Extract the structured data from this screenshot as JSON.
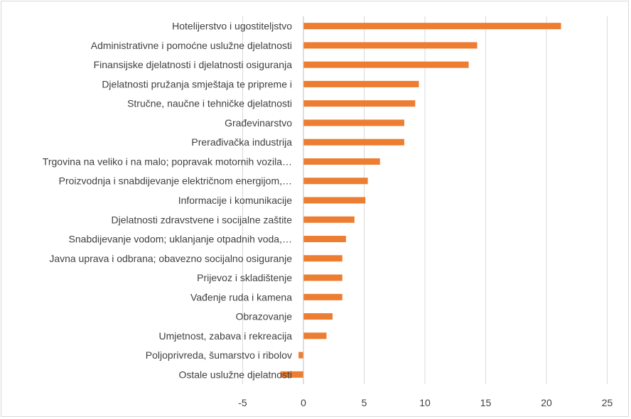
{
  "chart_data": {
    "type": "bar",
    "orientation": "horizontal",
    "categories": [
      "Hotelijerstvo i ugostiteljstvo",
      "Administrativne i pomoćne uslužne djelatnosti",
      "Finansijske djelatnosti i djelatnosti osiguranja",
      "Djelatnosti pružanja smještaja te pripreme i",
      "Stručne, naučne i tehničke djelatnosti",
      "Građevinarstvo",
      "Prerađivačka industrija",
      "Trgovina na veliko i na malo; popravak motornih vozila…",
      "Proizvodnja i snabdijevanje električnom energijom,…",
      "Informacije i komunikacije",
      "Djelatnosti zdravstvene i socijalne zaštite",
      "Snabdijevanje vodom; uklanjanje otpadnih voda,…",
      "Javna uprava i odbrana; obavezno socijalno osiguranje",
      "Prijevoz i skladištenje",
      "Vađenje ruda i kamena",
      "Obrazovanje",
      "Umjetnost, zabava i rekreacija",
      "Poljoprivreda, šumarstvo i ribolov",
      "Ostale uslužne djelatnosti"
    ],
    "values": [
      21.2,
      14.3,
      13.6,
      9.5,
      9.2,
      8.3,
      8.3,
      6.3,
      5.3,
      5.1,
      4.2,
      3.5,
      3.2,
      3.2,
      3.2,
      2.4,
      1.9,
      -0.4,
      -1.9
    ],
    "title": "",
    "xlabel": "",
    "ylabel": "",
    "xlim": [
      -5,
      25
    ],
    "xticks": [
      "-5",
      "0",
      "5",
      "10",
      "15",
      "20",
      "25"
    ],
    "xtick_values": [
      -5,
      0,
      5,
      10,
      15,
      20,
      25
    ],
    "grid": "vertical",
    "legend": "none",
    "colors": {
      "bar": "#ED7D31",
      "grid": "#d9d9d9",
      "axis": "#bfbfbf",
      "text": "#404040"
    }
  }
}
